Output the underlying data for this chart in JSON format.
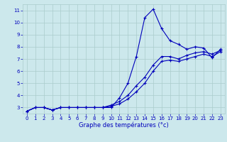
{
  "xlabel": "Graphe des températures (°c)",
  "bg_color": "#cce8ec",
  "grid_color": "#aacccc",
  "line_color": "#0000bb",
  "x_ticks": [
    0,
    1,
    2,
    3,
    4,
    5,
    6,
    7,
    8,
    9,
    10,
    11,
    12,
    13,
    14,
    15,
    16,
    17,
    18,
    19,
    20,
    21,
    22,
    23
  ],
  "y_ticks": [
    3,
    4,
    5,
    6,
    7,
    8,
    9,
    10,
    11
  ],
  "xlim": [
    -0.5,
    23.5
  ],
  "ylim": [
    2.5,
    11.5
  ],
  "line1_x": [
    0,
    1,
    2,
    3,
    4,
    5,
    6,
    7,
    8,
    9,
    10,
    11,
    12,
    13,
    14,
    15,
    16,
    17,
    18,
    19,
    20,
    21,
    22,
    23
  ],
  "line1_y": [
    2.7,
    3.0,
    3.0,
    2.8,
    3.0,
    3.0,
    3.0,
    3.0,
    3.0,
    3.0,
    3.0,
    3.8,
    5.0,
    7.2,
    10.4,
    11.1,
    9.5,
    8.5,
    8.2,
    7.8,
    8.0,
    7.9,
    7.1,
    7.8
  ],
  "line2_x": [
    0,
    1,
    2,
    3,
    4,
    5,
    6,
    7,
    8,
    9,
    10,
    11,
    12,
    13,
    14,
    15,
    16,
    17,
    18,
    19,
    20,
    21,
    22,
    23
  ],
  "line2_y": [
    2.7,
    3.0,
    3.0,
    2.8,
    3.0,
    3.0,
    3.0,
    3.0,
    3.0,
    3.0,
    3.2,
    3.5,
    4.0,
    4.8,
    5.5,
    6.5,
    7.2,
    7.2,
    7.0,
    7.3,
    7.5,
    7.6,
    7.4,
    7.7
  ],
  "line3_x": [
    0,
    1,
    2,
    3,
    4,
    5,
    6,
    7,
    8,
    9,
    10,
    11,
    12,
    13,
    14,
    15,
    16,
    17,
    18,
    19,
    20,
    21,
    22,
    23
  ],
  "line3_y": [
    2.7,
    3.0,
    3.0,
    2.8,
    3.0,
    3.0,
    3.0,
    3.0,
    3.0,
    3.0,
    3.1,
    3.3,
    3.7,
    4.3,
    5.0,
    6.0,
    6.8,
    6.9,
    6.8,
    7.0,
    7.2,
    7.4,
    7.2,
    7.6
  ]
}
